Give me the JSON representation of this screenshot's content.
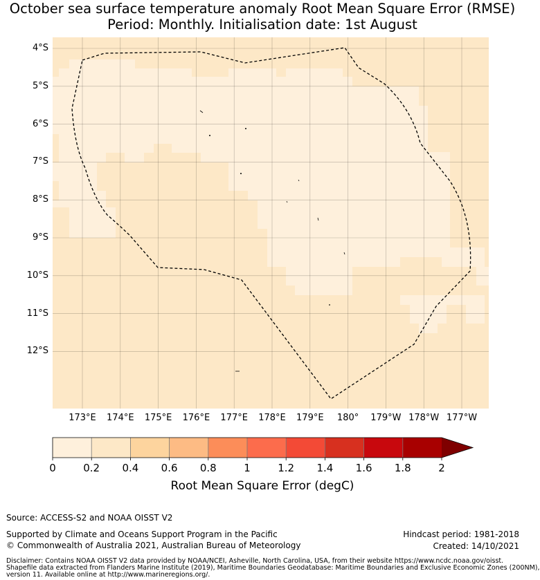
{
  "title": {
    "line1": "October sea surface temperature anomaly Root Mean Square Error (RMSE)",
    "line2": "Period: Monthly. Initialisation date: 1st August"
  },
  "map": {
    "lat_labels": [
      "4°S",
      "5°S",
      "6°S",
      "7°S",
      "8°S",
      "9°S",
      "10°S",
      "11°S",
      "12°S"
    ],
    "lon_labels": [
      "173°E",
      "174°E",
      "175°E",
      "176°E",
      "177°E",
      "178°E",
      "179°E",
      "180°",
      "179°W",
      "178°W",
      "177°W"
    ],
    "lon_range": [
      172.2,
      183.7
    ],
    "lat_range": [
      -13.7,
      -3.7
    ],
    "background_color": "#fde8c7",
    "light_color": "#fef0dc",
    "grid": true,
    "boundary_style": "dashed"
  },
  "colorbar": {
    "ticks": [
      "0",
      "0.2",
      "0.4",
      "0.6",
      "0.8",
      "1",
      "1.2",
      "1.4",
      "1.6",
      "1.8",
      "2"
    ],
    "colors": [
      "#fef0dc",
      "#fde8c7",
      "#fdd49e",
      "#fdbb84",
      "#fc8d59",
      "#fc6c4c",
      "#f34a36",
      "#d7301f",
      "#c8080d",
      "#a80000",
      "#7f0000"
    ],
    "label": "Root Mean Square Error (degC)",
    "extend": "max"
  },
  "footer": {
    "source": "Source: ACCESS-S2 and NOAA OISST V2",
    "supported": "Supported by Climate and Oceans Support Program in the Pacific",
    "copyright": "© Commonwealth of Australia 2021, Australian Bureau of Meteorology",
    "hindcast": "Hindcast period: 1981-2018",
    "created": "Created: 14/10/2021",
    "disclaimer1": "Disclaimer: Contains NOAA OISST V2 data provided by NOAA/NCEI, Asheville, North Carolina, USA, from their website https://www.ncdc.noaa.gov/oisst.",
    "disclaimer2": "Shapefile data extracted from Flanders Marine Institute (2019), Maritime Boundaries Geodatabase: Maritime Boundaries and Exclusive Economic Zones (200NM),",
    "disclaimer3": "version 11. Available online at http://www.marineregions.org/."
  }
}
